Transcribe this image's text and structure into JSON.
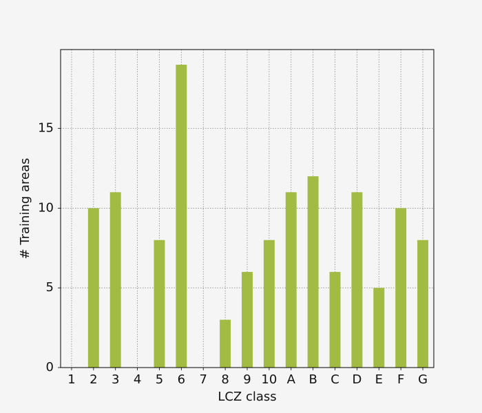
{
  "chart_data": {
    "type": "bar",
    "x_label": "LCZ class",
    "y_label": "# Training areas",
    "categories": [
      "1",
      "2",
      "3",
      "4",
      "5",
      "6",
      "7",
      "8",
      "9",
      "10",
      "A",
      "B",
      "C",
      "D",
      "E",
      "F",
      "G"
    ],
    "values": [
      0,
      10,
      11,
      0,
      8,
      19,
      0,
      3,
      6,
      8,
      11,
      12,
      6,
      11,
      5,
      10,
      8
    ],
    "color": "#a2bb42",
    "ylim": [
      0,
      19.95
    ],
    "yticks": [
      0,
      5,
      10,
      15
    ],
    "grid": true
  }
}
